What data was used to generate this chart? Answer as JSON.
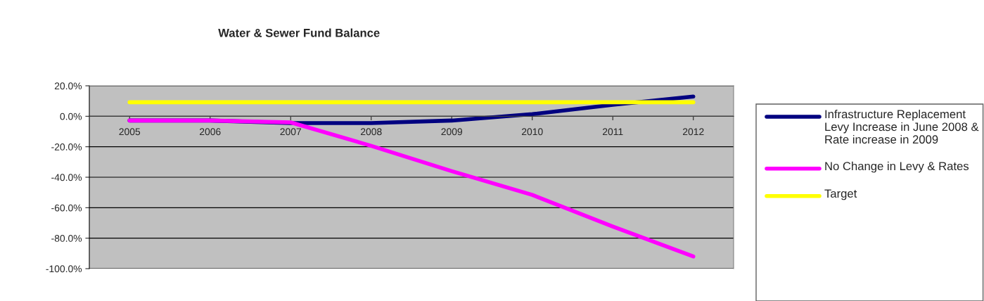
{
  "chart_data": {
    "type": "line",
    "title": "Water & Sewer Fund Balance",
    "categories": [
      "2005",
      "2006",
      "2007",
      "2008",
      "2009",
      "2010",
      "2011",
      "2012"
    ],
    "series": [
      {
        "name": "Infrastructure Replacement Levy Increase in June 2008 & Rate increase in 2009",
        "color": "#000080",
        "values": [
          -2.8,
          -2.8,
          -4.5,
          -4.5,
          -2.8,
          1.4,
          7.5,
          13.0
        ]
      },
      {
        "name": "No Change in Levy & Rates",
        "color": "#ff00ff",
        "values": [
          -2.8,
          -2.8,
          -4.0,
          -19.4,
          -36.0,
          -51.6,
          -72.4,
          -92.0
        ]
      },
      {
        "name": "Target",
        "color": "#ffff00",
        "values": [
          9.2,
          9.2,
          9.2,
          9.2,
          9.2,
          9.2,
          9.2,
          9.2
        ]
      }
    ],
    "ylim": [
      -100,
      20
    ],
    "yticks": [
      {
        "value": -100,
        "label": "-100.0%"
      },
      {
        "value": -80,
        "label": "-80.0%"
      },
      {
        "value": -60,
        "label": "-60.0%"
      },
      {
        "value": -40,
        "label": "-40.0%"
      },
      {
        "value": -20,
        "label": "-20.0%"
      },
      {
        "value": 0,
        "label": "0.0%"
      },
      {
        "value": 20,
        "label": "20.0%"
      }
    ],
    "grid": "y",
    "legend": "right",
    "marker": "none",
    "line_style": "solid"
  }
}
